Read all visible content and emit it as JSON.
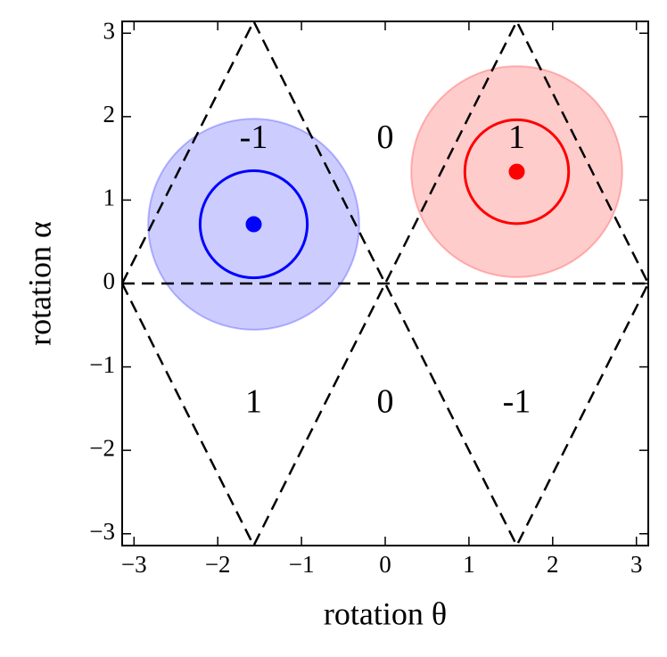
{
  "chart_data": {
    "type": "scatter",
    "x_label": "rotation θ",
    "y_label": "rotation α",
    "xlim": [
      -3.1416,
      3.1416
    ],
    "ylim": [
      -3.1416,
      3.1416
    ],
    "xticks": [
      {
        "value": -3,
        "label": "−3"
      },
      {
        "value": -2,
        "label": "−2"
      },
      {
        "value": -1,
        "label": "−1"
      },
      0,
      1,
      2,
      3
    ],
    "yticks": [
      {
        "value": -3,
        "label": "−3"
      },
      {
        "value": -2,
        "label": "−2"
      },
      {
        "value": -1,
        "label": "−1"
      },
      0,
      1,
      2,
      3
    ],
    "points": [
      {
        "x": -1.5708,
        "y": 0.71,
        "inner_radius": 0.64,
        "outer_radius": 1.26,
        "color": "#0000ff"
      },
      {
        "x": 1.5708,
        "y": 1.34,
        "inner_radius": 0.62,
        "outer_radius": 1.26,
        "color": "#ff0000"
      }
    ],
    "lines": [
      {
        "x": [
          -3.1416,
          -1.5708,
          0,
          1.5708,
          3.1416
        ],
        "y": [
          0,
          3.1416,
          0,
          3.1416,
          0
        ]
      },
      {
        "x": [
          -3.1416,
          -1.5708,
          0,
          1.5708,
          3.1416
        ],
        "y": [
          0,
          -3.1416,
          0,
          -3.1416,
          0
        ]
      },
      {
        "x": [
          -3.1416,
          3.1416
        ],
        "y": [
          0,
          0
        ]
      }
    ],
    "annotations": [
      {
        "text": "-1",
        "x": -1.5708,
        "y": 1.72
      },
      {
        "text": "0",
        "x": 0,
        "y": 1.72
      },
      {
        "text": "1",
        "x": 1.5708,
        "y": 1.72
      },
      {
        "text": "1",
        "x": -1.5708,
        "y": -1.45
      },
      {
        "text": "0",
        "x": 0,
        "y": -1.45
      },
      {
        "text": "-1",
        "x": 1.5708,
        "y": -1.45
      }
    ]
  }
}
